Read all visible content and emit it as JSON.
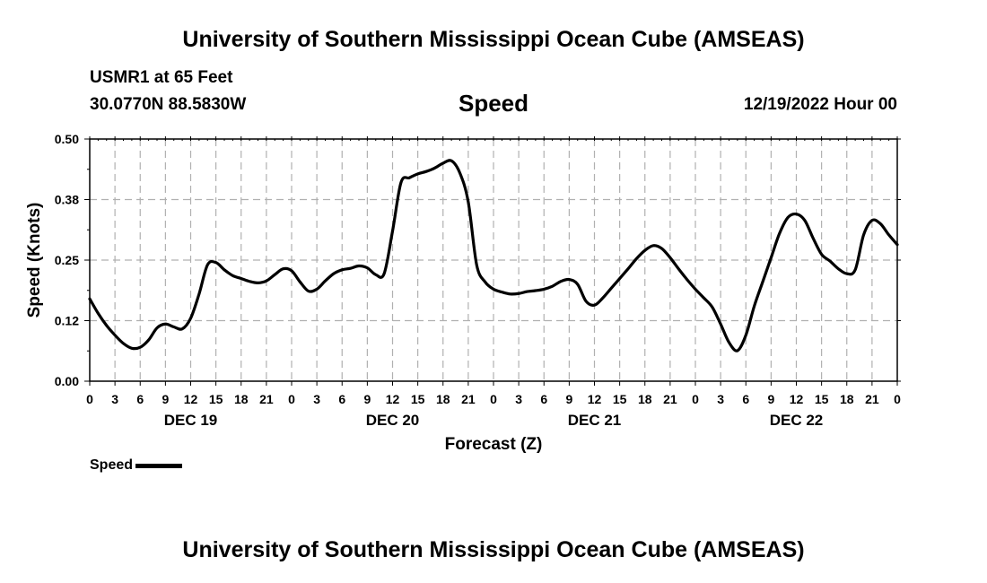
{
  "header": {
    "title": "University of Southern Mississippi Ocean Cube (AMSEAS)",
    "station": "USMR1 at 65 Feet",
    "coordinates": "30.0770N  88.5830W",
    "variable": "Speed",
    "run_time": "12/19/2022 Hour 00"
  },
  "footer": {
    "title": "University of Southern Mississippi Ocean Cube (AMSEAS)"
  },
  "legend": {
    "label": "Speed"
  },
  "chart_data": {
    "type": "line",
    "title": "Speed",
    "xlabel": "Forecast (Z)",
    "ylabel": "Speed (Knots)",
    "xlim": [
      0,
      96
    ],
    "ylim": [
      0,
      0.5
    ],
    "y_ticks": [
      0.0,
      0.125,
      0.25,
      0.375,
      0.5
    ],
    "y_tick_labels": [
      "0.00",
      "0.12",
      "0.25",
      "0.38",
      "0.50"
    ],
    "x_tick_labels": [
      "0",
      "3",
      "6",
      "9",
      "12",
      "15",
      "18",
      "21",
      "0",
      "3",
      "6",
      "9",
      "12",
      "15",
      "18",
      "21",
      "0",
      "3",
      "6",
      "9",
      "12",
      "15",
      "18",
      "21",
      "0",
      "3",
      "6",
      "9",
      "12",
      "15",
      "18",
      "21",
      "0"
    ],
    "day_labels": [
      {
        "label": "DEC 19",
        "hour": 12
      },
      {
        "label": "DEC 20",
        "hour": 36
      },
      {
        "label": "DEC 21",
        "hour": 60
      },
      {
        "label": "DEC 22",
        "hour": 84
      }
    ],
    "grid": true,
    "series": [
      {
        "name": "Speed",
        "color": "#000000",
        "x": [
          0,
          1,
          2,
          3,
          4,
          5,
          6,
          7,
          8,
          9,
          10,
          11,
          12,
          13,
          14,
          15,
          16,
          17,
          18,
          19,
          20,
          21,
          22,
          23,
          24,
          25,
          26,
          27,
          28,
          29,
          30,
          31,
          32,
          33,
          34,
          35,
          36,
          37,
          38,
          39,
          40,
          41,
          42,
          43,
          44,
          45,
          46,
          47,
          48,
          49,
          50,
          51,
          52,
          53,
          54,
          55,
          56,
          57,
          58,
          59,
          60,
          61,
          62,
          63,
          64,
          65,
          66,
          67,
          68,
          69,
          70,
          71,
          72,
          73,
          74,
          75,
          76,
          77,
          78,
          79,
          80,
          81,
          82,
          83,
          84,
          85,
          86,
          87,
          88,
          89,
          90,
          91,
          92,
          93,
          94,
          95,
          96
        ],
        "values": [
          0.17,
          0.14,
          0.115,
          0.095,
          0.078,
          0.068,
          0.07,
          0.085,
          0.11,
          0.118,
          0.112,
          0.108,
          0.13,
          0.18,
          0.24,
          0.245,
          0.23,
          0.218,
          0.212,
          0.206,
          0.203,
          0.207,
          0.22,
          0.232,
          0.228,
          0.205,
          0.186,
          0.19,
          0.207,
          0.222,
          0.23,
          0.233,
          0.238,
          0.234,
          0.22,
          0.222,
          0.31,
          0.41,
          0.42,
          0.428,
          0.433,
          0.44,
          0.45,
          0.455,
          0.43,
          0.37,
          0.24,
          0.205,
          0.19,
          0.184,
          0.18,
          0.181,
          0.185,
          0.187,
          0.19,
          0.196,
          0.206,
          0.21,
          0.2,
          0.165,
          0.157,
          0.172,
          0.192,
          0.212,
          0.232,
          0.253,
          0.27,
          0.28,
          0.274,
          0.255,
          0.232,
          0.21,
          0.19,
          0.172,
          0.153,
          0.118,
          0.08,
          0.063,
          0.095,
          0.155,
          0.205,
          0.255,
          0.305,
          0.338,
          0.345,
          0.332,
          0.295,
          0.262,
          0.248,
          0.232,
          0.222,
          0.23,
          0.302,
          0.332,
          0.325,
          0.302,
          0.282
        ]
      }
    ]
  }
}
